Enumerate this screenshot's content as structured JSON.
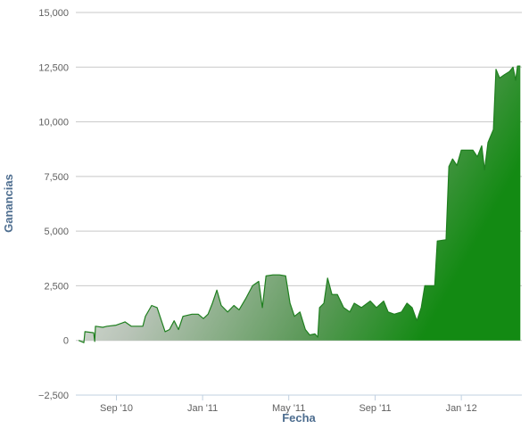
{
  "chart_data": {
    "type": "area",
    "x_label": "Fecha",
    "y_label": "Ganancias",
    "xlim": [
      2010.51,
      2012.234
    ],
    "ylim": [
      -2500,
      15000
    ],
    "xticks": [
      {
        "value": 2010.667,
        "label": "Sep '10"
      },
      {
        "value": 2011,
        "label": "Jan '11"
      },
      {
        "value": 2011.333,
        "label": "May '11"
      },
      {
        "value": 2011.667,
        "label": "Sep '11"
      },
      {
        "value": 2012,
        "label": "Jan '12"
      }
    ],
    "yticks": [
      {
        "value": -2500,
        "label": "−2,500"
      },
      0,
      {
        "value": 2500,
        "label": "2,500"
      },
      {
        "value": 5000,
        "label": "5,000"
      },
      {
        "value": 7500,
        "label": "7,500"
      },
      {
        "value": 10000,
        "label": "10,000"
      },
      {
        "value": 12500,
        "label": "12,500"
      },
      {
        "value": 15000,
        "label": "15,000"
      }
    ],
    "grid": true,
    "series": [
      {
        "color": "#1f7f1f",
        "x": [
          2010.521,
          2010.541,
          2010.545,
          2010.579,
          2010.583,
          2010.586,
          2010.614,
          2010.631,
          2010.666,
          2010.69,
          2010.7,
          2010.724,
          2010.769,
          2010.779,
          2010.803,
          2010.824,
          2010.841,
          2010.855,
          2010.872,
          2010.89,
          2010.907,
          2010.924,
          2010.959,
          2010.983,
          2011.003,
          2011.021,
          2011.038,
          2011.055,
          2011.072,
          2011.097,
          2011.121,
          2011.141,
          2011.166,
          2011.193,
          2011.217,
          2011.231,
          2011.245,
          2011.272,
          2011.297,
          2011.321,
          2011.338,
          2011.355,
          2011.376,
          2011.397,
          2011.414,
          2011.434,
          2011.445,
          2011.452,
          2011.469,
          2011.483,
          2011.5,
          2011.521,
          2011.545,
          2011.569,
          2011.586,
          2011.614,
          2011.648,
          2011.672,
          2011.7,
          2011.717,
          2011.741,
          2011.769,
          2011.79,
          2011.81,
          2011.828,
          2011.845,
          2011.859,
          2011.897,
          2011.907,
          2011.941,
          2011.952,
          2011.966,
          2011.983,
          2012.0,
          2012.045,
          2012.062,
          2012.079,
          2012.09,
          2012.103,
          2012.124,
          2012.134,
          2012.148,
          2012.166,
          2012.186,
          2012.2,
          2012.21,
          2012.217,
          2012.228
        ],
        "values": [
          0,
          -100,
          400,
          350,
          -50,
          650,
          600,
          650,
          700,
          800,
          850,
          650,
          650,
          1100,
          1600,
          1500,
          900,
          400,
          500,
          900,
          500,
          1100,
          1200,
          1200,
          1000,
          1200,
          1700,
          2300,
          1600,
          1300,
          1600,
          1400,
          1900,
          2500,
          2700,
          1500,
          2950,
          3000,
          3000,
          2950,
          1700,
          1100,
          1300,
          500,
          250,
          300,
          150,
          1500,
          1700,
          2850,
          2100,
          2100,
          1500,
          1300,
          1700,
          1500,
          1800,
          1500,
          1800,
          1300,
          1200,
          1300,
          1700,
          1500,
          900,
          1500,
          2500,
          2500,
          4550,
          4600,
          7950,
          8300,
          8000,
          8700,
          8700,
          8400,
          8900,
          7800,
          9050,
          9650,
          12400,
          12000,
          12150,
          12300,
          12500,
          11900,
          12550,
          12550
        ]
      }
    ]
  }
}
